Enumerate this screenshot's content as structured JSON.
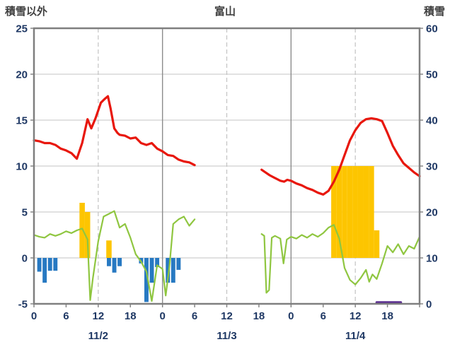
{
  "header": {
    "left_axis_title": "積雪以外",
    "chart_title": "富山",
    "right_axis_title": "積雪"
  },
  "chart_data": {
    "type": "line",
    "title": "富山",
    "left_axis": {
      "title": "積雪以外",
      "min": -5,
      "max": 25,
      "ticks": [
        25,
        20,
        15,
        10,
        5,
        0,
        -5
      ]
    },
    "right_axis": {
      "title": "積雪",
      "min": 0,
      "max": 60,
      "ticks": [
        60,
        50,
        40,
        30,
        20,
        10,
        0
      ]
    },
    "x_axis": {
      "min_hour": 0,
      "max_hour": 72,
      "tick_step": 6,
      "tick_labels": [
        "0",
        "6",
        "12",
        "18",
        "0",
        "6",
        "12",
        "18",
        "0",
        "6",
        "12",
        "18"
      ],
      "day_labels": [
        {
          "label": "11/2",
          "center_hour": 12
        },
        {
          "label": "11/3",
          "center_hour": 36
        },
        {
          "label": "11/4",
          "center_hour": 60
        }
      ],
      "gridlines": [
        {
          "hour": 12,
          "dashed": true
        },
        {
          "hour": 24,
          "dashed": false
        },
        {
          "hour": 36,
          "dashed": true
        },
        {
          "hour": 48,
          "dashed": false
        },
        {
          "hour": 60,
          "dashed": true
        }
      ]
    },
    "series": [
      {
        "name": "orange-bars",
        "kind": "bar",
        "axis": "left",
        "color": "#fdc500",
        "bar_width_hours": 1.0,
        "bars": [
          [
            9,
            6.0
          ],
          [
            10,
            5.0
          ],
          [
            14,
            1.9
          ],
          [
            56,
            10
          ],
          [
            57,
            10
          ],
          [
            58,
            10
          ],
          [
            59,
            10
          ],
          [
            60,
            10
          ],
          [
            61,
            10
          ],
          [
            62,
            10
          ],
          [
            63,
            10
          ],
          [
            64,
            3.0
          ]
        ]
      },
      {
        "name": "blue-bars",
        "kind": "bar",
        "axis": "left",
        "color": "#2779c2",
        "bar_width_hours": 0.78,
        "bars": [
          [
            1,
            -1.5
          ],
          [
            2,
            -2.7
          ],
          [
            3,
            -1.4
          ],
          [
            4,
            -1.4
          ],
          [
            14,
            -0.9
          ],
          [
            15,
            -1.6
          ],
          [
            16,
            -0.9
          ],
          [
            20,
            -0.6
          ],
          [
            21,
            -4.8
          ],
          [
            22,
            -2.7
          ],
          [
            23,
            -1.0
          ],
          [
            25,
            -2.7
          ],
          [
            26,
            -2.7
          ],
          [
            27,
            -1.3
          ]
        ]
      },
      {
        "name": "purple-line",
        "kind": "line",
        "axis": "left",
        "color": "#5c2e91",
        "width": 3.5,
        "segments": [
          [
            [
              64,
              -5
            ],
            [
              68.5,
              -5
            ]
          ]
        ]
      },
      {
        "name": "green-line",
        "kind": "line",
        "axis": "left",
        "color": "#8fc640",
        "width": 2.2,
        "segments": [
          [
            [
              0,
              2.5
            ],
            [
              1,
              2.3
            ],
            [
              2,
              2.2
            ],
            [
              3,
              2.6
            ],
            [
              4,
              2.4
            ],
            [
              5,
              2.6
            ],
            [
              6,
              2.9
            ],
            [
              7,
              2.7
            ],
            [
              8,
              3.0
            ],
            [
              9,
              3.2
            ],
            [
              10,
              2.0
            ],
            [
              10.5,
              -4.6
            ],
            [
              11,
              -2.2
            ],
            [
              12,
              1.8
            ],
            [
              13,
              4.5
            ],
            [
              14,
              4.8
            ],
            [
              15,
              5.1
            ],
            [
              16,
              3.3
            ],
            [
              17,
              3.7
            ],
            [
              18,
              2.2
            ],
            [
              19,
              0.4
            ],
            [
              20,
              -0.4
            ],
            [
              21,
              -1.5
            ],
            [
              22,
              -4.7
            ],
            [
              23,
              -0.8
            ],
            [
              24,
              -1.2
            ],
            [
              24.6,
              -4.1
            ],
            [
              25.3,
              -0.9
            ],
            [
              26,
              3.7
            ],
            [
              27,
              4.2
            ],
            [
              28,
              4.5
            ],
            [
              29,
              3.5
            ],
            [
              30,
              4.2
            ]
          ],
          [
            [
              42.5,
              2.6
            ],
            [
              43,
              2.4
            ],
            [
              43.4,
              -3.8
            ],
            [
              43.9,
              -3.5
            ],
            [
              44.4,
              2.2
            ],
            [
              45,
              2.4
            ],
            [
              46,
              2.1
            ],
            [
              46.6,
              -0.6
            ],
            [
              47.2,
              2.0
            ],
            [
              48,
              2.3
            ],
            [
              49,
              2.1
            ],
            [
              50,
              2.5
            ],
            [
              51,
              2.2
            ],
            [
              52,
              2.6
            ],
            [
              53,
              2.3
            ],
            [
              54,
              2.7
            ],
            [
              55,
              3.3
            ],
            [
              56,
              3.6
            ],
            [
              57,
              2.1
            ],
            [
              58,
              -1.1
            ],
            [
              59,
              -2.4
            ],
            [
              60,
              -2.9
            ],
            [
              61,
              -2.2
            ],
            [
              62,
              -1.3
            ],
            [
              62.6,
              -2.6
            ],
            [
              63.2,
              -1.8
            ],
            [
              64,
              -2.3
            ],
            [
              65,
              -0.6
            ],
            [
              66,
              1.3
            ],
            [
              67,
              0.6
            ],
            [
              68,
              1.5
            ],
            [
              69,
              0.4
            ],
            [
              70,
              1.3
            ],
            [
              71,
              1.0
            ],
            [
              72,
              2.3
            ]
          ]
        ]
      },
      {
        "name": "red-line",
        "kind": "line",
        "axis": "left",
        "color": "#e8170d",
        "width": 3.2,
        "segments": [
          [
            [
              0,
              12.8
            ],
            [
              1,
              12.7
            ],
            [
              2,
              12.5
            ],
            [
              3,
              12.5
            ],
            [
              4,
              12.3
            ],
            [
              5,
              11.9
            ],
            [
              6,
              11.7
            ],
            [
              7,
              11.4
            ],
            [
              8,
              10.8
            ],
            [
              9,
              12.5
            ],
            [
              10,
              15.1
            ],
            [
              10.7,
              14.1
            ],
            [
              11.5,
              15.2
            ],
            [
              12.5,
              16.9
            ],
            [
              13.2,
              17.3
            ],
            [
              13.8,
              17.6
            ],
            [
              14.3,
              16.3
            ],
            [
              15,
              14.1
            ],
            [
              15.6,
              13.6
            ],
            [
              16,
              13.4
            ],
            [
              17,
              13.3
            ],
            [
              18,
              13.0
            ],
            [
              19,
              13.1
            ],
            [
              20,
              12.5
            ],
            [
              21,
              12.3
            ],
            [
              22,
              12.5
            ],
            [
              23,
              11.9
            ],
            [
              24,
              11.6
            ],
            [
              25,
              11.2
            ],
            [
              26,
              11.1
            ],
            [
              27,
              10.7
            ],
            [
              28,
              10.5
            ],
            [
              29,
              10.4
            ],
            [
              30,
              10.1
            ]
          ],
          [
            [
              42.5,
              9.6
            ],
            [
              43,
              9.4
            ],
            [
              44,
              9.0
            ],
            [
              45,
              8.7
            ],
            [
              46,
              8.4
            ],
            [
              46.7,
              8.3
            ],
            [
              47.3,
              8.5
            ],
            [
              48,
              8.4
            ],
            [
              49,
              8.1
            ],
            [
              50,
              7.9
            ],
            [
              51,
              7.6
            ],
            [
              52,
              7.4
            ],
            [
              53,
              7.1
            ],
            [
              54,
              6.9
            ],
            [
              55,
              7.3
            ],
            [
              56,
              8.3
            ],
            [
              57,
              9.6
            ],
            [
              58,
              11.2
            ],
            [
              59,
              12.8
            ],
            [
              60,
              13.9
            ],
            [
              61,
              14.7
            ],
            [
              62,
              15.1
            ],
            [
              63,
              15.2
            ],
            [
              64,
              15.1
            ],
            [
              65,
              14.9
            ],
            [
              66,
              13.6
            ],
            [
              67,
              12.2
            ],
            [
              68,
              11.2
            ],
            [
              69,
              10.3
            ],
            [
              70,
              9.8
            ],
            [
              71,
              9.3
            ],
            [
              72,
              8.9
            ]
          ]
        ]
      }
    ]
  },
  "colors": {
    "red_line": "#e8170d",
    "green_line": "#8fc640",
    "orange_bar": "#fdc500",
    "blue_bar": "#2779c2",
    "purple_line": "#5c2e91",
    "grid": "#c3c3c3",
    "day_grid": "#8c8c8c",
    "frame": "#7f7f7f",
    "axis_text": "#1f3864",
    "title_text": "#404040"
  }
}
